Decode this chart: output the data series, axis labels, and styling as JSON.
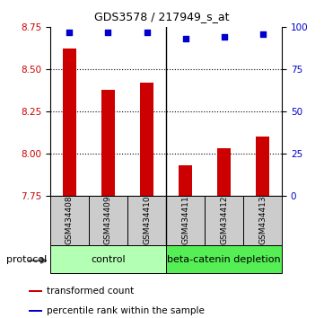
{
  "title": "GDS3578 / 217949_s_at",
  "samples": [
    "GSM434408",
    "GSM434409",
    "GSM434410",
    "GSM434411",
    "GSM434412",
    "GSM434413"
  ],
  "bar_values": [
    8.62,
    8.38,
    8.42,
    7.93,
    8.03,
    8.1
  ],
  "percentile_values": [
    97,
    97,
    97,
    93,
    94,
    96
  ],
  "ylim_left": [
    7.75,
    8.75
  ],
  "ylim_right": [
    0,
    100
  ],
  "yticks_left": [
    7.75,
    8.0,
    8.25,
    8.5,
    8.75
  ],
  "yticks_right": [
    0,
    25,
    50,
    75,
    100
  ],
  "bar_color": "#cc0000",
  "dot_color": "#0000cc",
  "control_label": "control",
  "treatment_label": "beta-catenin depletion",
  "control_bg": "#b3ffb3",
  "treatment_bg": "#55ee55",
  "sample_bg": "#cccccc",
  "legend_bar_label": "transformed count",
  "legend_dot_label": "percentile rank within the sample",
  "protocol_label": "protocol",
  "bar_width": 0.35,
  "dot_size": 22,
  "title_fontsize": 9,
  "tick_fontsize": 7.5,
  "sample_fontsize": 6.5,
  "legend_fontsize": 7.5,
  "protocol_fontsize": 8
}
